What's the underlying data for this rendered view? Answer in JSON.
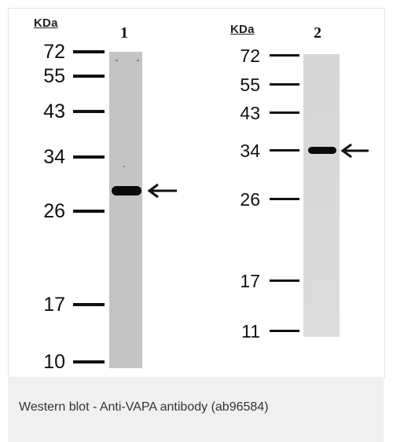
{
  "blot": {
    "panel_1": {
      "unit_label": "KDa",
      "lane_label": "1",
      "markers": [
        "72",
        "55",
        "43",
        "34",
        "26",
        "17",
        "10"
      ]
    },
    "panel_2": {
      "unit_label": "KDa",
      "lane_label": "2",
      "markers": [
        "72",
        "55",
        "43",
        "34",
        "26",
        "17",
        "11"
      ]
    }
  },
  "caption": "Western blot - Anti-VAPA antibody (ab96584)"
}
